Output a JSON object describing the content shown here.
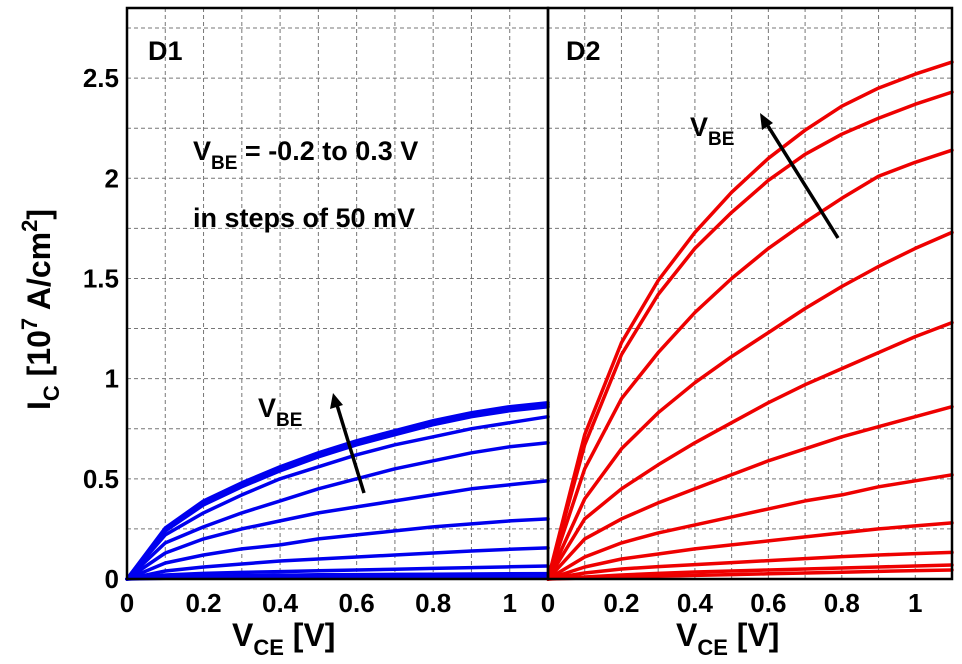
{
  "chart_data": [
    {
      "type": "line",
      "panel_label": "D1",
      "color": "#0000ee",
      "x": [
        0,
        0.1,
        0.2,
        0.3,
        0.4,
        0.5,
        0.6,
        0.7,
        0.8,
        0.9,
        1.0,
        1.1
      ],
      "xlim": [
        0,
        1.1
      ],
      "ylim": [
        0,
        2.85
      ],
      "xticks": [
        "0",
        "0.2",
        "0.4",
        "0.6",
        "0.8",
        "1"
      ],
      "yticks": [
        "0",
        "0.5",
        "1",
        "1.5",
        "2",
        "2.5"
      ],
      "xlabel": {
        "main": "V",
        "sub": "CE",
        "unit": " [V]"
      },
      "ylabel": {
        "main": "I",
        "sub": "C",
        "bracket": " [10",
        "sup": "7",
        "unit": " A/cm",
        "sup2": "2",
        "close": "]"
      },
      "annotation_lines": [
        {
          "main": "V",
          "sub": "BE",
          "rest": " = -0.2 to 0.3 V"
        },
        {
          "text": "in steps of 50 mV"
        }
      ],
      "arrow_label": {
        "main": "V",
        "sub": "BE"
      },
      "series": [
        {
          "values": [
            0,
            0.004,
            0.006,
            0.007,
            0.008,
            0.008,
            0.009,
            0.009,
            0.01,
            0.01,
            0.01,
            0.011
          ]
        },
        {
          "values": [
            0,
            0.01,
            0.014,
            0.017,
            0.019,
            0.021,
            0.022,
            0.023,
            0.024,
            0.025,
            0.026,
            0.027
          ]
        },
        {
          "values": [
            0,
            0.02,
            0.028,
            0.033,
            0.037,
            0.041,
            0.045,
            0.049,
            0.053,
            0.057,
            0.061,
            0.065
          ]
        },
        {
          "values": [
            0,
            0.04,
            0.06,
            0.075,
            0.09,
            0.1,
            0.11,
            0.12,
            0.13,
            0.14,
            0.148,
            0.155
          ]
        },
        {
          "values": [
            0,
            0.08,
            0.12,
            0.15,
            0.17,
            0.2,
            0.22,
            0.24,
            0.26,
            0.275,
            0.29,
            0.3
          ]
        },
        {
          "values": [
            0,
            0.13,
            0.2,
            0.25,
            0.29,
            0.33,
            0.36,
            0.39,
            0.42,
            0.45,
            0.47,
            0.49
          ]
        },
        {
          "values": [
            0,
            0.18,
            0.26,
            0.33,
            0.39,
            0.45,
            0.5,
            0.55,
            0.59,
            0.63,
            0.66,
            0.68
          ]
        },
        {
          "values": [
            0,
            0.22,
            0.33,
            0.42,
            0.5,
            0.56,
            0.62,
            0.67,
            0.71,
            0.75,
            0.78,
            0.81
          ]
        },
        {
          "values": [
            0,
            0.24,
            0.37,
            0.46,
            0.54,
            0.61,
            0.67,
            0.72,
            0.77,
            0.81,
            0.84,
            0.86
          ]
        },
        {
          "values": [
            0,
            0.25,
            0.38,
            0.47,
            0.55,
            0.62,
            0.68,
            0.73,
            0.78,
            0.82,
            0.85,
            0.87
          ]
        },
        {
          "values": [
            0,
            0.255,
            0.39,
            0.48,
            0.56,
            0.63,
            0.69,
            0.74,
            0.79,
            0.83,
            0.86,
            0.88
          ]
        }
      ]
    },
    {
      "type": "line",
      "panel_label": "D2",
      "color": "#ee0000",
      "x": [
        0,
        0.1,
        0.2,
        0.3,
        0.4,
        0.5,
        0.6,
        0.7,
        0.8,
        0.9,
        1.0,
        1.1
      ],
      "xlim": [
        0,
        1.1
      ],
      "ylim": [
        0,
        2.85
      ],
      "xticks": [
        "0",
        "0.2",
        "0.4",
        "0.6",
        "0.8",
        "1"
      ],
      "xlabel": {
        "main": "V",
        "sub": "CE",
        "unit": " [V]"
      },
      "arrow_label": {
        "main": "V",
        "sub": "BE"
      },
      "series": [
        {
          "values": [
            0,
            0.005,
            0.01,
            0.014,
            0.018,
            0.022,
            0.026,
            0.03,
            0.034,
            0.038,
            0.042,
            0.045
          ]
        },
        {
          "values": [
            0,
            0.01,
            0.02,
            0.028,
            0.035,
            0.04,
            0.045,
            0.05,
            0.055,
            0.06,
            0.065,
            0.07
          ]
        },
        {
          "values": [
            0,
            0.03,
            0.05,
            0.062,
            0.072,
            0.082,
            0.092,
            0.102,
            0.112,
            0.12,
            0.127,
            0.133
          ]
        },
        {
          "values": [
            0,
            0.06,
            0.1,
            0.125,
            0.15,
            0.17,
            0.19,
            0.21,
            0.23,
            0.25,
            0.265,
            0.28
          ]
        },
        {
          "values": [
            0,
            0.11,
            0.18,
            0.23,
            0.27,
            0.31,
            0.35,
            0.39,
            0.42,
            0.46,
            0.49,
            0.52
          ]
        },
        {
          "values": [
            0,
            0.2,
            0.3,
            0.38,
            0.45,
            0.52,
            0.59,
            0.65,
            0.71,
            0.76,
            0.81,
            0.86
          ]
        },
        {
          "values": [
            0,
            0.3,
            0.45,
            0.57,
            0.68,
            0.78,
            0.88,
            0.97,
            1.05,
            1.13,
            1.21,
            1.28
          ]
        },
        {
          "values": [
            0,
            0.4,
            0.65,
            0.83,
            0.98,
            1.11,
            1.23,
            1.35,
            1.46,
            1.56,
            1.65,
            1.73
          ]
        },
        {
          "values": [
            0,
            0.55,
            0.9,
            1.13,
            1.33,
            1.5,
            1.65,
            1.78,
            1.9,
            2.01,
            2.08,
            2.14
          ]
        },
        {
          "values": [
            0,
            0.67,
            1.12,
            1.42,
            1.65,
            1.83,
            1.99,
            2.12,
            2.22,
            2.3,
            2.37,
            2.43
          ]
        },
        {
          "values": [
            0,
            0.72,
            1.18,
            1.49,
            1.73,
            1.93,
            2.1,
            2.24,
            2.36,
            2.45,
            2.52,
            2.58
          ]
        }
      ]
    }
  ]
}
